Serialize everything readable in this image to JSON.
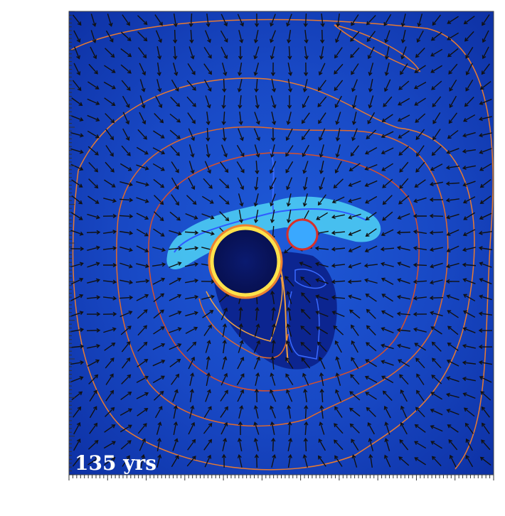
{
  "label": "135 yrs"
}
